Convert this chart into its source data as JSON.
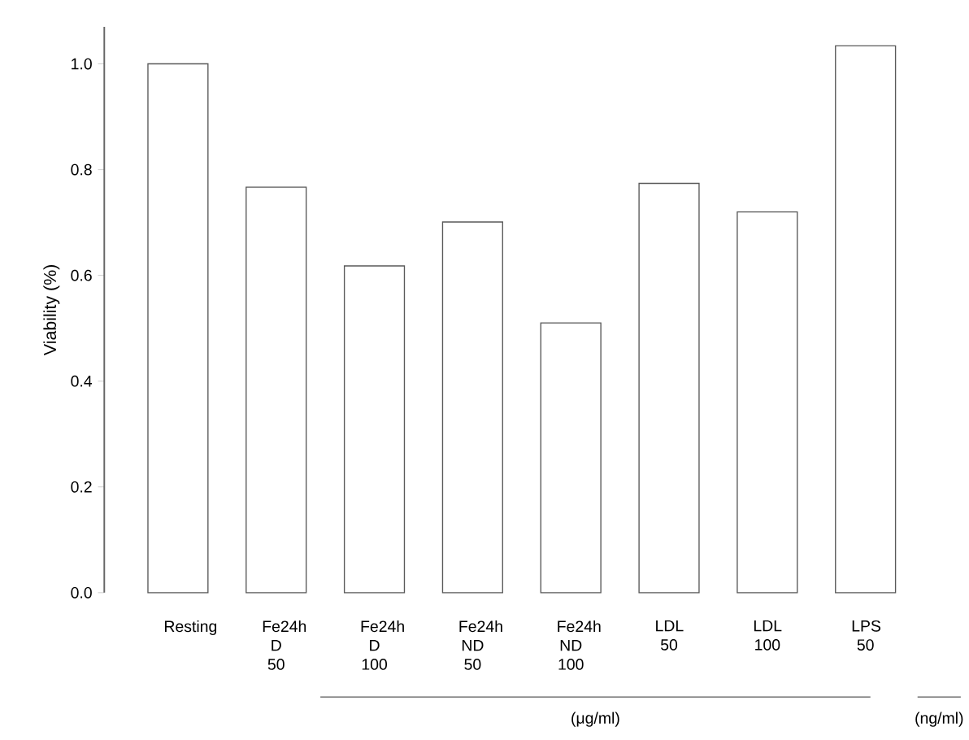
{
  "chart_data": {
    "type": "bar",
    "ylabel": "Viability (%)",
    "categories": [
      "Resting",
      "Fe24h D 50",
      "Fe24h D 100",
      "Fe24h ND 50",
      "Fe24h ND 100",
      "LDL 50",
      "LDL 100",
      "LPS 50"
    ],
    "values": [
      1.0,
      0.767,
      0.618,
      0.701,
      0.51,
      0.774,
      0.72,
      1.034
    ],
    "color": "#ffffff",
    "ylim": [
      0,
      1.07
    ],
    "yticks": [
      {
        "value": 0,
        "label": "0.0"
      },
      0.2,
      0.4,
      0.6,
      0.8,
      {
        "value": 1,
        "label": "1.0"
      }
    ],
    "annotations": [
      "(μg/ml)",
      "(ng/ml)"
    ]
  }
}
